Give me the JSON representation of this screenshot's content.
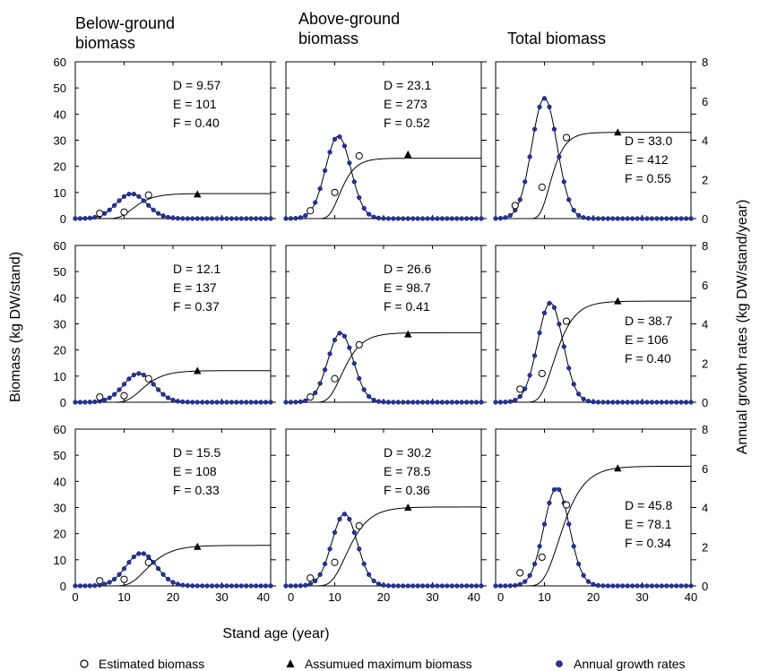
{
  "figure": {
    "ylabel_left": "Biomass (kg DW/stand)",
    "ylabel_right": "Annual growth rates  (kg DW/stand/year)",
    "xlabel": "Stand age (year)"
  },
  "columns": [
    {
      "title_lines": [
        "Below-ground",
        "biomass"
      ]
    },
    {
      "title_lines": [
        "Above-ground",
        "biomass"
      ]
    },
    {
      "title_lines": [
        "Total  biomass"
      ]
    }
  ],
  "legend": [
    {
      "label": "Estimated biomass",
      "marker": "open-circle"
    },
    {
      "label": "Assumued maximum biomass",
      "marker": "filled-triangle"
    },
    {
      "label": "Annual growth rates",
      "marker": "blue-dot"
    }
  ],
  "chart_data": {
    "type": "line",
    "layout": "3x3 panel grid",
    "xlim": [
      0,
      40
    ],
    "x_ticks": [
      0,
      10,
      20,
      30,
      40
    ],
    "ylim_left": [
      0,
      60
    ],
    "y_ticks_left": [
      0,
      10,
      20,
      30,
      40,
      50,
      60
    ],
    "ylim_right": [
      0,
      8
    ],
    "y_ticks_right": [
      0,
      2,
      4,
      6,
      8
    ],
    "colors": {
      "growth_dot": "#2233aa",
      "line": "#000000"
    },
    "panels": [
      {
        "row": 0,
        "col": 0,
        "D": 9.57,
        "E": 101,
        "F": 0.4,
        "param_labels": [
          "D = 9.57",
          "E = 101",
          "F = 0.40"
        ],
        "estimated": [
          [
            5,
            2
          ],
          [
            10,
            2.5
          ],
          [
            15,
            9
          ]
        ],
        "max_marker": [
          25,
          9.3
        ],
        "growth_peak_age": 11.5,
        "growth_peak_biomass": 9.5
      },
      {
        "row": 0,
        "col": 1,
        "D": 23.1,
        "E": 273,
        "F": 0.52,
        "param_labels": [
          "D = 23.1",
          "E = 273",
          "F = 0.52"
        ],
        "estimated": [
          [
            5,
            3
          ],
          [
            10,
            10
          ],
          [
            15,
            24
          ]
        ],
        "max_marker": [
          25,
          24.5
        ],
        "growth_peak_age": 10.7,
        "growth_peak_biomass": 31.5
      },
      {
        "row": 0,
        "col": 2,
        "D": 33.0,
        "E": 412,
        "F": 0.55,
        "param_labels": [
          "D = 33.0",
          "E = 412",
          "F = 0.55"
        ],
        "estimated": [
          [
            4,
            5
          ],
          [
            9.5,
            12
          ],
          [
            14.5,
            31
          ]
        ],
        "max_marker": [
          25,
          33
        ],
        "growth_peak_age": 10.0,
        "growth_peak_biomass": 46
      },
      {
        "row": 1,
        "col": 0,
        "D": 12.1,
        "E": 137,
        "F": 0.37,
        "param_labels": [
          "D = 12.1",
          "E = 137",
          "F = 0.37"
        ],
        "estimated": [
          [
            5,
            2
          ],
          [
            10,
            2.5
          ],
          [
            15,
            9
          ]
        ],
        "max_marker": [
          25,
          12
        ],
        "growth_peak_age": 13.0,
        "growth_peak_biomass": 11
      },
      {
        "row": 1,
        "col": 1,
        "D": 26.6,
        "E": 98.7,
        "F": 0.41,
        "param_labels": [
          "D = 26.6",
          "E = 98.7",
          "F = 0.41"
        ],
        "estimated": [
          [
            5,
            2
          ],
          [
            10,
            9
          ],
          [
            15,
            22
          ]
        ],
        "max_marker": [
          25,
          26
        ],
        "growth_peak_age": 11.2,
        "growth_peak_biomass": 26.5
      },
      {
        "row": 1,
        "col": 2,
        "D": 38.7,
        "E": 106,
        "F": 0.4,
        "param_labels": [
          "D = 38.7",
          "E = 106",
          "F = 0.40"
        ],
        "estimated": [
          [
            5,
            5
          ],
          [
            9.5,
            11
          ],
          [
            14.5,
            31
          ]
        ],
        "max_marker": [
          25,
          38.7
        ],
        "growth_peak_age": 11.2,
        "growth_peak_biomass": 38
      },
      {
        "row": 2,
        "col": 0,
        "D": 15.5,
        "E": 108,
        "F": 0.33,
        "param_labels": [
          "D = 15.5",
          "E = 108",
          "F = 0.33"
        ],
        "estimated": [
          [
            5,
            2
          ],
          [
            10,
            2.5
          ],
          [
            15,
            9
          ]
        ],
        "max_marker": [
          25,
          15
        ],
        "growth_peak_age": 13.5,
        "growth_peak_biomass": 12.5
      },
      {
        "row": 2,
        "col": 1,
        "D": 30.2,
        "E": 78.5,
        "F": 0.36,
        "param_labels": [
          "D = 30.2",
          "E = 78.5",
          "F = 0.36"
        ],
        "estimated": [
          [
            5,
            3
          ],
          [
            10,
            9
          ],
          [
            15,
            23
          ]
        ],
        "max_marker": [
          25,
          30
        ],
        "growth_peak_age": 12.0,
        "growth_peak_biomass": 27.5
      },
      {
        "row": 2,
        "col": 2,
        "D": 45.8,
        "E": 78.1,
        "F": 0.34,
        "param_labels": [
          "D = 45.8",
          "E = 78.1",
          "F = 0.34"
        ],
        "estimated": [
          [
            5,
            5
          ],
          [
            9.5,
            11
          ],
          [
            14.5,
            31
          ]
        ],
        "max_marker": [
          25,
          45
        ],
        "growth_peak_age": 12.5,
        "growth_peak_biomass": 37.5
      }
    ]
  }
}
